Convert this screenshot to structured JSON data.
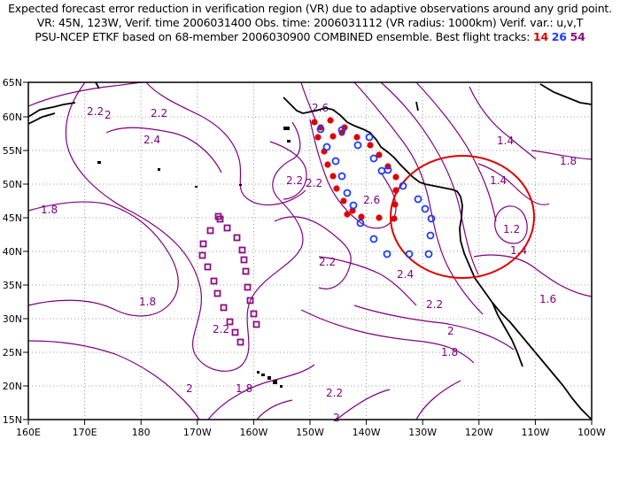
{
  "header": {
    "line1": "Expected forecast error reduction in verification region (VR) due to adaptive observations around any grid point.",
    "line2": "VR: 45N, 123W, Verif. time 2006031400   Obs. time: 2006031112  (VR radius: 1000km)    Verif. var.: u,v,T",
    "line3_prefix": "PSU-NCEP ETKF based on 68-member 2006030900 COMBINED ensemble.   Best flight tracks: ",
    "track_a": "14",
    "track_b": "26",
    "track_c": "54"
  },
  "map": {
    "lon_labels": [
      "160E",
      "170E",
      "180",
      "170W",
      "160W",
      "150W",
      "140W",
      "130W",
      "120W",
      "110W",
      "100W"
    ],
    "lat_labels": [
      "15N",
      "20N",
      "25N",
      "30N",
      "35N",
      "40N",
      "45N",
      "50N",
      "55N",
      "60N",
      "65N"
    ],
    "contour_labels": [
      "2.2",
      "2",
      "2.2",
      "2.4",
      "2.6",
      "2.2",
      "2.6",
      "2.2",
      "2.4",
      "2.2",
      "1.4",
      "1.8",
      "1.4",
      "1.2",
      "1.4",
      "1.6",
      "1.8",
      "1.8",
      "2.2",
      "2.2",
      "2",
      "1.8",
      "2",
      "1.8",
      "2.2",
      "2"
    ],
    "colors": {
      "contour": "#800080",
      "coast": "#000000",
      "grid": "#9a9a9a",
      "verification_circle": "#e00000",
      "track_14": "#e00000",
      "track_26": "#1a3cff",
      "track_54": "#8a1080"
    },
    "verification_region": {
      "lat": 45,
      "lon": "123W",
      "radius_km": 1000
    }
  }
}
